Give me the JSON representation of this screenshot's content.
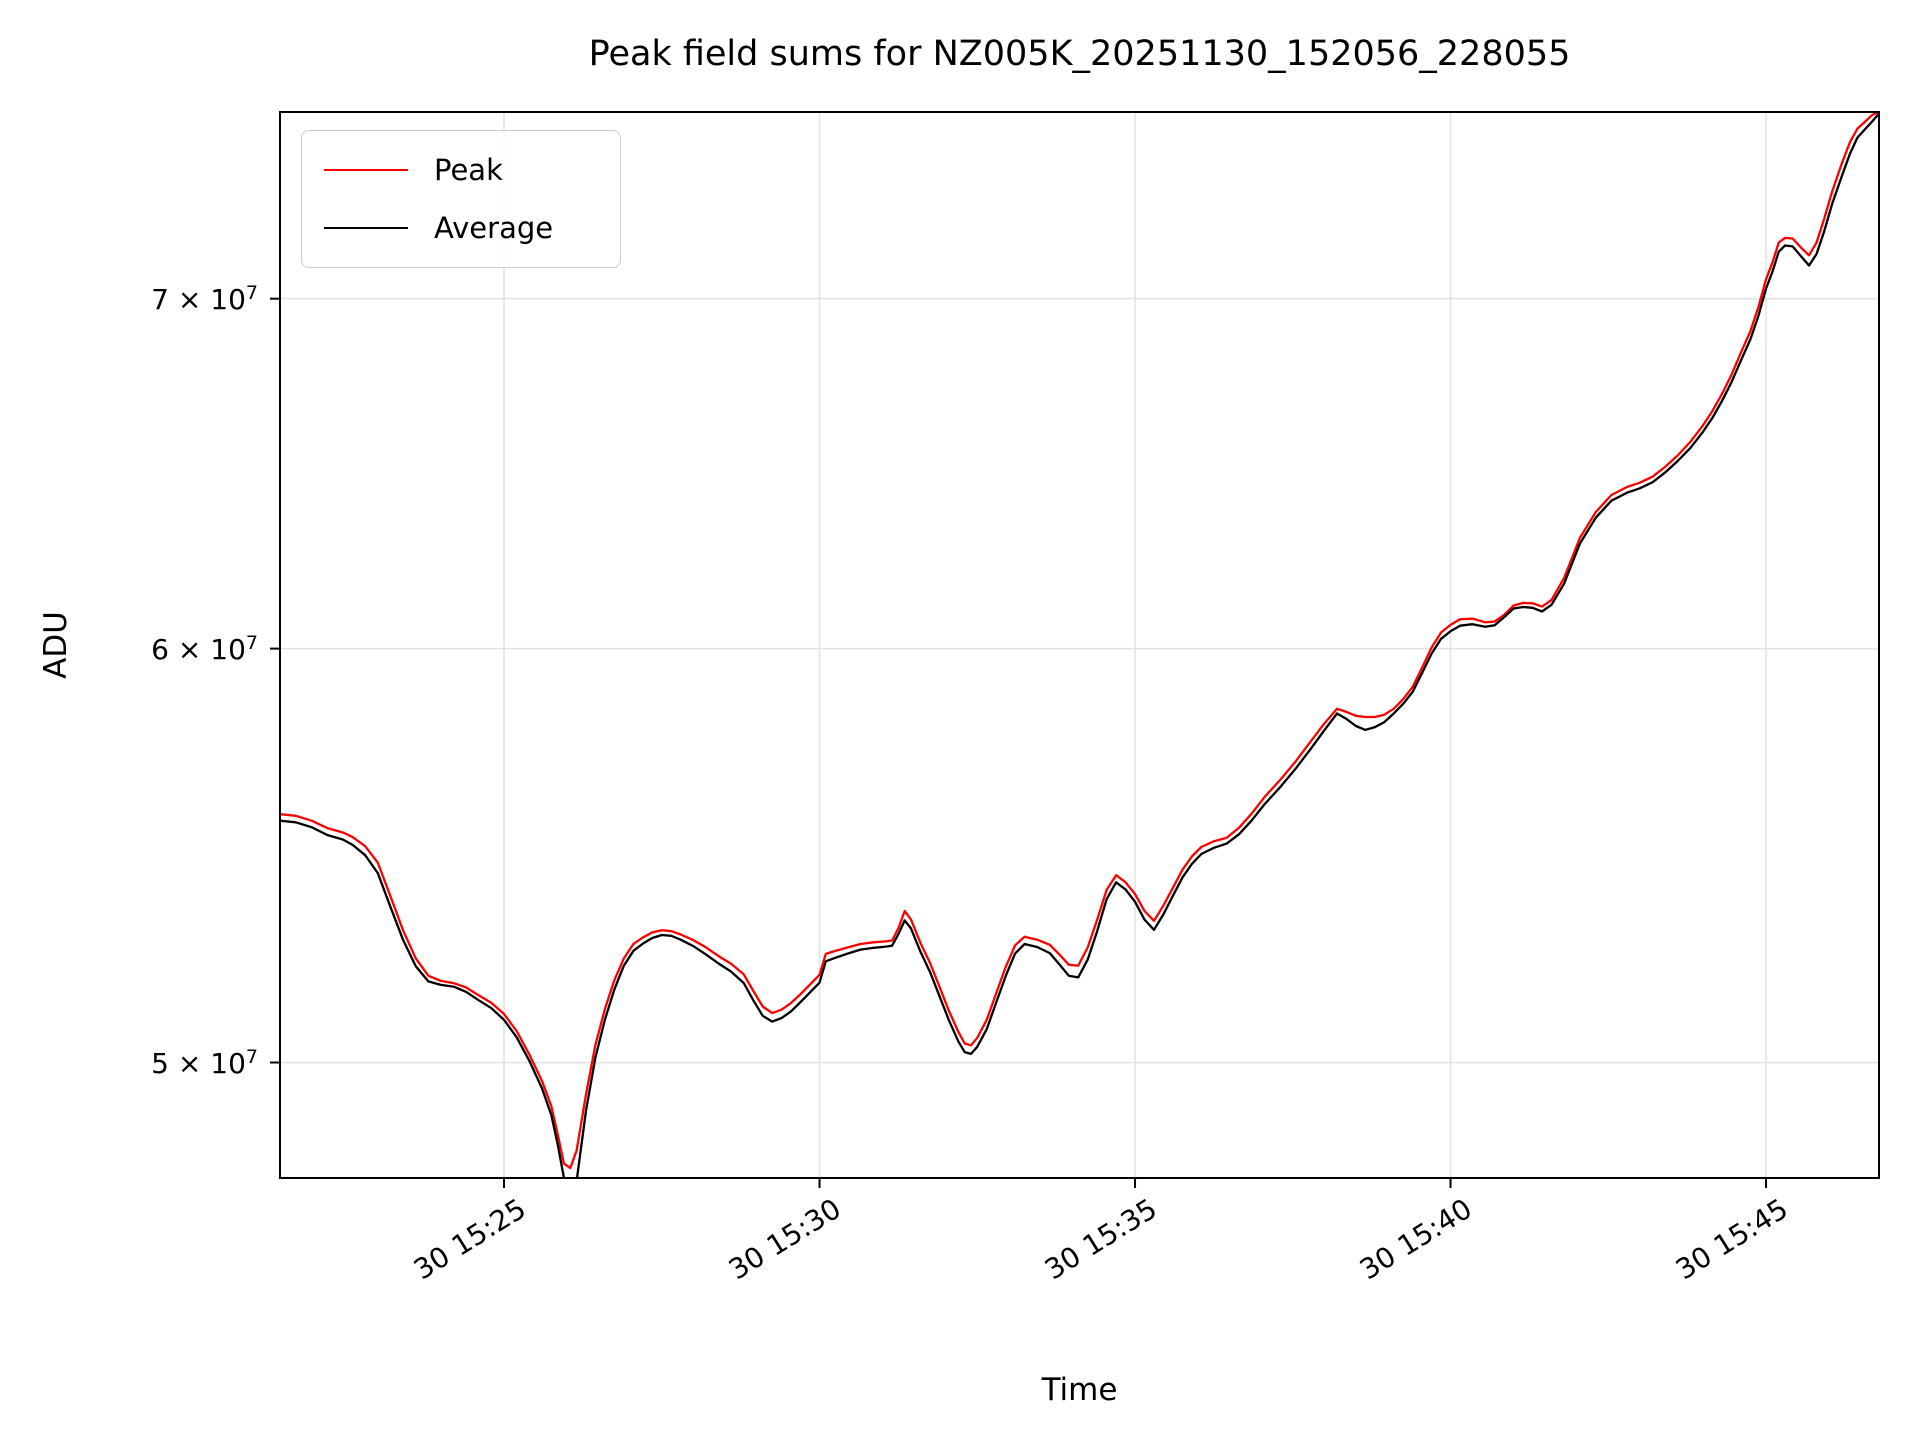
{
  "figure": {
    "background": "#ffffff"
  },
  "colors": {
    "grid": "#e3e3e3",
    "frame": "#000000",
    "peak": "#ff0000",
    "average": "#000000"
  },
  "chart_data": {
    "type": "line",
    "title": "Peak field sums for NZ005K_20251130_152056_228055",
    "xlabel": "Time",
    "ylabel": "ADU",
    "yscale": "log",
    "grid": true,
    "legend_position": "upper left",
    "x_unit": "minutes after 15:00 on day 30",
    "xlim_minutes": [
      21.45,
      46.79
    ],
    "ylim": [
      47520000,
      76000000
    ],
    "x_ticks": [
      {
        "minutes": 25,
        "label": "30 15:25"
      },
      {
        "minutes": 30,
        "label": "30 15:30"
      },
      {
        "minutes": 35,
        "label": "30 15:35"
      },
      {
        "minutes": 40,
        "label": "30 15:40"
      },
      {
        "minutes": 45,
        "label": "30 15:45"
      }
    ],
    "y_ticks": [
      {
        "value": 50000000,
        "text": "5 × 10",
        "exp": "7"
      },
      {
        "value": 60000000,
        "text": "6 × 10",
        "exp": "7"
      },
      {
        "value": 70000000,
        "text": "7 × 10",
        "exp": "7"
      }
    ],
    "x": [
      21.45,
      21.7,
      21.95,
      22.2,
      22.45,
      22.6,
      22.8,
      23.0,
      23.2,
      23.4,
      23.6,
      23.8,
      24.0,
      24.2,
      24.4,
      24.6,
      24.8,
      25.0,
      25.2,
      25.4,
      25.6,
      25.75,
      25.85,
      25.95,
      26.05,
      26.15,
      26.3,
      26.45,
      26.6,
      26.75,
      26.9,
      27.05,
      27.2,
      27.35,
      27.5,
      27.65,
      27.8,
      28.0,
      28.2,
      28.4,
      28.6,
      28.8,
      28.95,
      29.1,
      29.25,
      29.4,
      29.55,
      29.7,
      29.85,
      30.0,
      30.1,
      30.25,
      30.45,
      30.65,
      30.85,
      31.05,
      31.15,
      31.25,
      31.35,
      31.45,
      31.6,
      31.75,
      31.9,
      32.05,
      32.2,
      32.3,
      32.4,
      32.5,
      32.65,
      32.8,
      32.95,
      33.1,
      33.25,
      33.45,
      33.65,
      33.8,
      33.95,
      34.1,
      34.25,
      34.4,
      34.55,
      34.7,
      34.85,
      35.0,
      35.15,
      35.3,
      35.45,
      35.6,
      35.75,
      35.9,
      36.05,
      36.25,
      36.45,
      36.65,
      36.85,
      37.05,
      37.3,
      37.55,
      37.8,
      38.0,
      38.2,
      38.35,
      38.5,
      38.65,
      38.8,
      38.95,
      39.1,
      39.25,
      39.4,
      39.55,
      39.7,
      39.85,
      40.0,
      40.15,
      40.35,
      40.55,
      40.7,
      40.85,
      41.0,
      41.15,
      41.3,
      41.45,
      41.6,
      41.8,
      42.05,
      42.3,
      42.55,
      42.8,
      43.0,
      43.2,
      43.4,
      43.6,
      43.8,
      44.0,
      44.15,
      44.3,
      44.45,
      44.6,
      44.75,
      44.88,
      45.0,
      45.1,
      45.2,
      45.3,
      45.42,
      45.55,
      45.68,
      45.8,
      45.92,
      46.05,
      46.2,
      46.33,
      46.45,
      46.57,
      46.68,
      46.79
    ],
    "series": [
      {
        "name": "Peak",
        "color": "#ff0000",
        "values": [
          55780000,
          55740000,
          55620000,
          55440000,
          55330000,
          55220000,
          55000000,
          54600000,
          53800000,
          53000000,
          52350000,
          51950000,
          51830000,
          51780000,
          51680000,
          51500000,
          51330000,
          51080000,
          50700000,
          50180000,
          49600000,
          49050000,
          48450000,
          47820000,
          47730000,
          48100000,
          49300000,
          50400000,
          51200000,
          51850000,
          52350000,
          52680000,
          52830000,
          52950000,
          53000000,
          52980000,
          52900000,
          52770000,
          52600000,
          52400000,
          52220000,
          51980000,
          51600000,
          51250000,
          51100000,
          51180000,
          51330000,
          51530000,
          51750000,
          51970000,
          52450000,
          52520000,
          52600000,
          52680000,
          52720000,
          52740000,
          52760000,
          53050000,
          53450000,
          53250000,
          52700000,
          52250000,
          51700000,
          51150000,
          50680000,
          50420000,
          50380000,
          50550000,
          50950000,
          51550000,
          52150000,
          52650000,
          52850000,
          52780000,
          52660000,
          52440000,
          52200000,
          52180000,
          52600000,
          53250000,
          53950000,
          54300000,
          54130000,
          53850000,
          53450000,
          53220000,
          53580000,
          54000000,
          54430000,
          54750000,
          54980000,
          55120000,
          55200000,
          55450000,
          55800000,
          56200000,
          56630000,
          57100000,
          57630000,
          58050000,
          58430000,
          58350000,
          58250000,
          58220000,
          58220000,
          58280000,
          58430000,
          58680000,
          59000000,
          59500000,
          60030000,
          60430000,
          60630000,
          60780000,
          60800000,
          60700000,
          60720000,
          60900000,
          61150000,
          61220000,
          61210000,
          61120000,
          61300000,
          61900000,
          63000000,
          63720000,
          64200000,
          64430000,
          64550000,
          64720000,
          65000000,
          65330000,
          65720000,
          66200000,
          66620000,
          67120000,
          67680000,
          68350000,
          69000000,
          69750000,
          70600000,
          71120000,
          71750000,
          71900000,
          71880000,
          71600000,
          71350000,
          71750000,
          72500000,
          73400000,
          74300000,
          75000000,
          75450000,
          75680000,
          75900000,
          76000000
        ]
      },
      {
        "name": "Average",
        "color": "#000000",
        "values": [
          55620000,
          55580000,
          55460000,
          55270000,
          55160000,
          55030000,
          54780000,
          54350000,
          53550000,
          52780000,
          52170000,
          51820000,
          51740000,
          51700000,
          51580000,
          51390000,
          51210000,
          50950000,
          50560000,
          50040000,
          49440000,
          48860000,
          48240000,
          47520000,
          47330000,
          47450000,
          48950000,
          50120000,
          50960000,
          51640000,
          52180000,
          52520000,
          52690000,
          52820000,
          52890000,
          52870000,
          52780000,
          52630000,
          52440000,
          52230000,
          52040000,
          51780000,
          51390000,
          51040000,
          50910000,
          50990000,
          51140000,
          51350000,
          51570000,
          51790000,
          52280000,
          52360000,
          52460000,
          52550000,
          52590000,
          52620000,
          52640000,
          52910000,
          53230000,
          53040000,
          52500000,
          52040000,
          51490000,
          50940000,
          50470000,
          50230000,
          50190000,
          50350000,
          50740000,
          51340000,
          51940000,
          52460000,
          52680000,
          52610000,
          52470000,
          52210000,
          51950000,
          51910000,
          52320000,
          52980000,
          53730000,
          54130000,
          53960000,
          53670000,
          53250000,
          53010000,
          53370000,
          53810000,
          54240000,
          54570000,
          54810000,
          54960000,
          55060000,
          55290000,
          55630000,
          56020000,
          56450000,
          56920000,
          57440000,
          57880000,
          58310000,
          58170000,
          57990000,
          57890000,
          57960000,
          58090000,
          58310000,
          58560000,
          58870000,
          59360000,
          59870000,
          60260000,
          60460000,
          60610000,
          60650000,
          60580000,
          60620000,
          60840000,
          61070000,
          61110000,
          61090000,
          60990000,
          61170000,
          61740000,
          62840000,
          63560000,
          64040000,
          64270000,
          64390000,
          64560000,
          64840000,
          65170000,
          65540000,
          66010000,
          66420000,
          66910000,
          67460000,
          68110000,
          68750000,
          69480000,
          70310000,
          70830000,
          71460000,
          71660000,
          71630000,
          71330000,
          71030000,
          71390000,
          72100000,
          73000000,
          73880000,
          74620000,
          75150000,
          75430000,
          75680000,
          75950000
        ]
      }
    ]
  }
}
